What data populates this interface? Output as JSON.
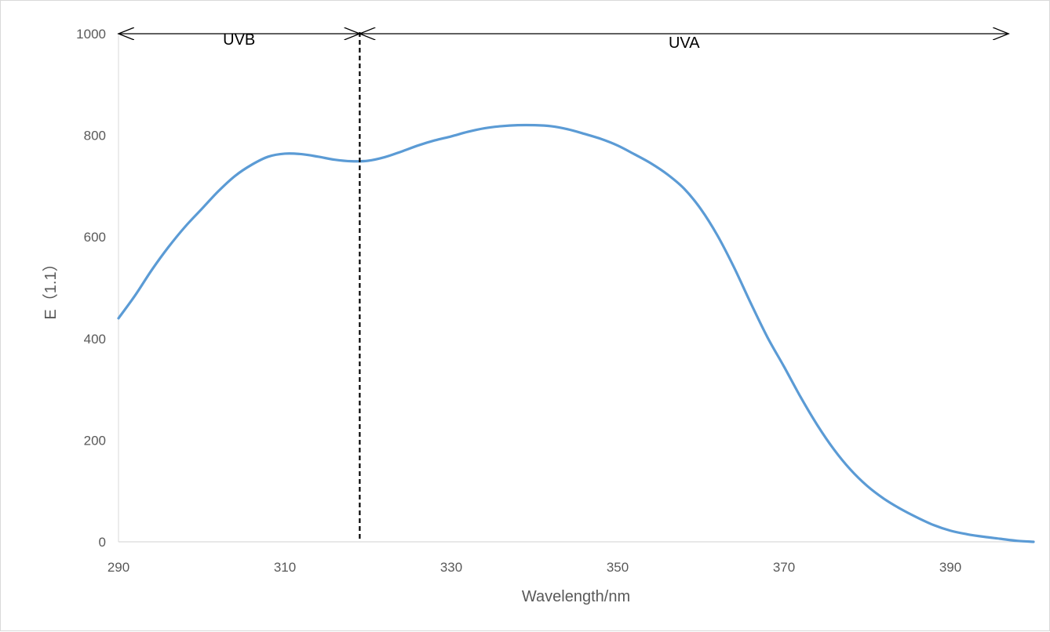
{
  "chart_data": {
    "type": "line",
    "title": "",
    "xlabel": "Wavelength/nm",
    "ylabel": "E（1.1）",
    "xlim": [
      290,
      400
    ],
    "ylim": [
      0,
      1000
    ],
    "x_ticks": [
      290,
      310,
      330,
      350,
      370,
      390
    ],
    "y_ticks": [
      0,
      200,
      400,
      600,
      800,
      1000
    ],
    "grid": false,
    "legend": "none",
    "series": [
      {
        "color": "#5b9bd5",
        "x": [
          290,
          292,
          294,
          296,
          298,
          300,
          302,
          304,
          306,
          308,
          310,
          312,
          314,
          316,
          318,
          320,
          322,
          324,
          326,
          328,
          330,
          332,
          334,
          336,
          338,
          340,
          342,
          344,
          346,
          348,
          350,
          352,
          354,
          356,
          358,
          360,
          362,
          364,
          366,
          368,
          370,
          372,
          374,
          376,
          378,
          380,
          382,
          384,
          386,
          388,
          390,
          392,
          394,
          396,
          398,
          400
        ],
        "y": [
          440,
          485,
          535,
          580,
          620,
          655,
          690,
          720,
          742,
          758,
          764,
          763,
          758,
          752,
          749,
          750,
          757,
          768,
          780,
          790,
          798,
          807,
          814,
          818,
          820,
          820,
          818,
          812,
          803,
          793,
          780,
          763,
          745,
          723,
          695,
          655,
          603,
          540,
          470,
          403,
          345,
          285,
          230,
          182,
          142,
          110,
          85,
          65,
          48,
          33,
          22,
          15,
          10,
          6,
          2,
          0
        ]
      }
    ],
    "regions": [
      {
        "label": "UVB",
        "x_start": 290,
        "x_end": 319,
        "y": 1000
      },
      {
        "label": "UVA",
        "x_start": 319,
        "x_end": 397,
        "y": 1000
      }
    ],
    "divider": {
      "x": 319,
      "style": "dashed",
      "color": "#000000"
    }
  }
}
